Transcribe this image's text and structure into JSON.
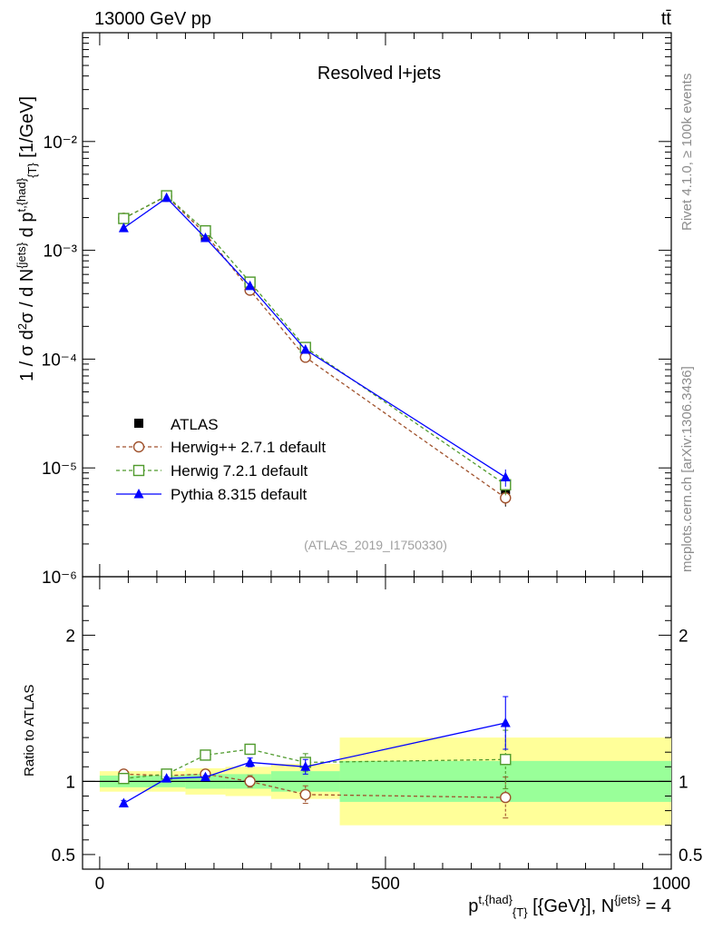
{
  "header": {
    "left": "13000 GeV pp",
    "right": "tt̄"
  },
  "side_labels": {
    "rivet": "Rivet 4.1.0, ≥ 100k events",
    "mcplots": "mcplots.cern.ch [arXiv:1306.3436]"
  },
  "chart_data": {
    "type": "line",
    "title": "Resolved l+jets",
    "analysis_id": "(ATLAS_2019_I1750330)",
    "ylabel": "1 / σ d²σ / d N^{jets} d p^{t,{had}}_{T} [1/GeV]",
    "xlabel": "p^{t,{had}}_{T} [{GeV}], N^{jets} = 4",
    "ratio_ylabel": "Ratio to ATLAS",
    "xlim": [
      -30,
      1000
    ],
    "ylim_log": [
      1e-06,
      0.1
    ],
    "ratio_ylim": [
      0.4,
      2.4
    ],
    "x_ticks": [
      0,
      500,
      1000
    ],
    "y_ticks": [
      {
        "v": 1e-06,
        "label": "10⁻⁶"
      },
      {
        "v": 1e-05,
        "label": "10⁻⁵"
      },
      {
        "v": 0.0001,
        "label": "10⁻⁴"
      },
      {
        "v": 0.001,
        "label": "10⁻³"
      },
      {
        "v": 0.01,
        "label": "10⁻²"
      }
    ],
    "ratio_ticks": [
      {
        "v": 0.5,
        "label": "0.5"
      },
      {
        "v": 1,
        "label": "1"
      },
      {
        "v": 2,
        "label": "2"
      }
    ],
    "bins": [
      {
        "lo": 0,
        "hi": 90,
        "x": 42
      },
      {
        "lo": 90,
        "hi": 150,
        "x": 117
      },
      {
        "lo": 150,
        "hi": 220,
        "x": 185
      },
      {
        "lo": 220,
        "hi": 300,
        "x": 263
      },
      {
        "lo": 300,
        "hi": 420,
        "x": 360
      },
      {
        "lo": 420,
        "hi": 1000,
        "x": 710
      }
    ],
    "data": {
      "name": "ATLAS",
      "values": [
        0.00195,
        0.0031,
        0.00135,
        0.00044,
        0.000115,
        6.3e-06
      ],
      "band_stat": [
        0.04,
        0.04,
        0.05,
        0.05,
        0.07,
        0.14
      ],
      "band_total": [
        0.07,
        0.07,
        0.09,
        0.1,
        0.12,
        0.3
      ]
    },
    "series": [
      {
        "name": "Herwig++ 2.7.1 default",
        "color": "#a0522d",
        "marker": "circle",
        "dashed": true,
        "values": [
          0.00197,
          0.00314,
          0.00142,
          0.00043,
          0.000104,
          5.3e-06
        ],
        "ratio": [
          1.05,
          1.04,
          1.05,
          1.0,
          0.91,
          0.89
        ],
        "ratio_err": [
          0.01,
          0.01,
          0.02,
          0.04,
          0.06,
          0.14
        ]
      },
      {
        "name": "Herwig 7.2.1 default",
        "color": "#4f9a2c",
        "marker": "square",
        "dashed": true,
        "values": [
          0.00196,
          0.00317,
          0.00151,
          0.00051,
          0.000128,
          7e-06
        ],
        "ratio": [
          1.02,
          1.05,
          1.18,
          1.22,
          1.13,
          1.15
        ],
        "ratio_err": [
          0.01,
          0.01,
          0.02,
          0.03,
          0.06,
          0.2
        ]
      },
      {
        "name": "Pythia 8.315 default",
        "color": "#0000ff",
        "marker": "triangle",
        "dashed": false,
        "values": [
          0.0016,
          0.00303,
          0.0013,
          0.00047,
          0.000122,
          8.2e-06
        ],
        "ratio": [
          0.85,
          1.02,
          1.03,
          1.13,
          1.1,
          1.4
        ],
        "ratio_err": [
          0.02,
          0.01,
          0.01,
          0.03,
          0.05,
          0.18
        ]
      }
    ]
  }
}
